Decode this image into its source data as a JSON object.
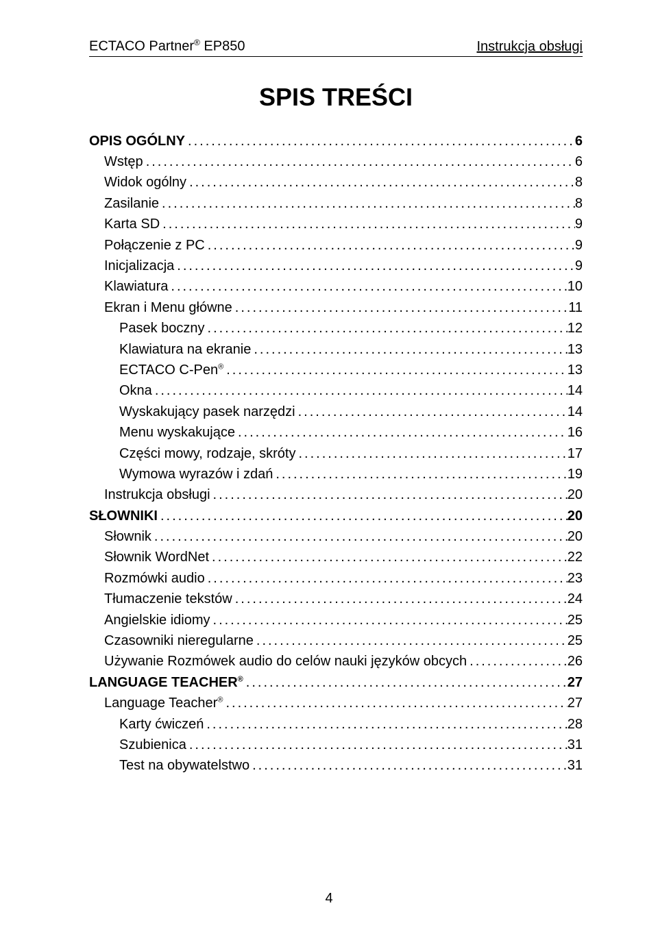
{
  "header": {
    "left_prefix": "ECTACO Partner",
    "left_reg": "®",
    "left_suffix": " EP850",
    "right": "Instrukcja obsługi"
  },
  "title": "SPIS TREŚCI",
  "page_number": "4",
  "toc": [
    {
      "label": "OPIS OGÓLNY",
      "page": "6",
      "bold": true,
      "indent": 0,
      "sup": ""
    },
    {
      "label": "Wstęp",
      "page": "6",
      "bold": false,
      "indent": 1,
      "sup": ""
    },
    {
      "label": "Widok ogólny",
      "page": "8",
      "bold": false,
      "indent": 1,
      "sup": ""
    },
    {
      "label": "Zasilanie",
      "page": "8",
      "bold": false,
      "indent": 1,
      "sup": ""
    },
    {
      "label": "Karta SD",
      "page": "9",
      "bold": false,
      "indent": 1,
      "sup": ""
    },
    {
      "label": "Połączenie z PC",
      "page": "9",
      "bold": false,
      "indent": 1,
      "sup": ""
    },
    {
      "label": "Inicjalizacja",
      "page": "9",
      "bold": false,
      "indent": 1,
      "sup": ""
    },
    {
      "label": "Klawiatura",
      "page": "10",
      "bold": false,
      "indent": 1,
      "sup": ""
    },
    {
      "label": "Ekran i Menu główne",
      "page": "11",
      "bold": false,
      "indent": 1,
      "sup": ""
    },
    {
      "label": "Pasek boczny",
      "page": "12",
      "bold": false,
      "indent": 2,
      "sup": ""
    },
    {
      "label": "Klawiatura na ekranie",
      "page": "13",
      "bold": false,
      "indent": 2,
      "sup": ""
    },
    {
      "label": "ECTACO C-Pen",
      "page": "13",
      "bold": false,
      "indent": 2,
      "sup": "®"
    },
    {
      "label": "Okna",
      "page": "14",
      "bold": false,
      "indent": 2,
      "sup": ""
    },
    {
      "label": "Wyskakujący pasek narzędzi",
      "page": "14",
      "bold": false,
      "indent": 2,
      "sup": ""
    },
    {
      "label": "Menu wyskakujące",
      "page": "16",
      "bold": false,
      "indent": 2,
      "sup": ""
    },
    {
      "label": "Części mowy, rodzaje, skróty",
      "page": "17",
      "bold": false,
      "indent": 2,
      "sup": ""
    },
    {
      "label": "Wymowa wyrazów i zdań",
      "page": "19",
      "bold": false,
      "indent": 2,
      "sup": ""
    },
    {
      "label": "Instrukcja obsługi",
      "page": "20",
      "bold": false,
      "indent": 1,
      "sup": ""
    },
    {
      "label": "SŁOWNIKI",
      "page": "20",
      "bold": true,
      "indent": 0,
      "sup": ""
    },
    {
      "label": "Słownik",
      "page": "20",
      "bold": false,
      "indent": 1,
      "sup": ""
    },
    {
      "label": "Słownik WordNet",
      "page": "22",
      "bold": false,
      "indent": 1,
      "sup": ""
    },
    {
      "label": "Rozmówki audio",
      "page": "23",
      "bold": false,
      "indent": 1,
      "sup": ""
    },
    {
      "label": "Tłumaczenie tekstów",
      "page": "24",
      "bold": false,
      "indent": 1,
      "sup": ""
    },
    {
      "label": "Angielskie idiomy",
      "page": "25",
      "bold": false,
      "indent": 1,
      "sup": ""
    },
    {
      "label": "Czasowniki nieregularne",
      "page": "25",
      "bold": false,
      "indent": 1,
      "sup": ""
    },
    {
      "label": "Używanie Rozmówek audio do celów nauki języków obcych",
      "page": "26",
      "bold": false,
      "indent": 1,
      "sup": ""
    },
    {
      "label": "LANGUAGE TEACHER",
      "page": "27",
      "bold": true,
      "indent": 0,
      "sup": "®"
    },
    {
      "label": "Language Teacher",
      "page": "27",
      "bold": false,
      "indent": 1,
      "sup": "®"
    },
    {
      "label": "Karty ćwiczeń",
      "page": "28",
      "bold": false,
      "indent": 2,
      "sup": ""
    },
    {
      "label": "Szubienica",
      "page": "31",
      "bold": false,
      "indent": 2,
      "sup": ""
    },
    {
      "label": "Test na obywatelstwo",
      "page": "31",
      "bold": false,
      "indent": 2,
      "sup": ""
    }
  ]
}
